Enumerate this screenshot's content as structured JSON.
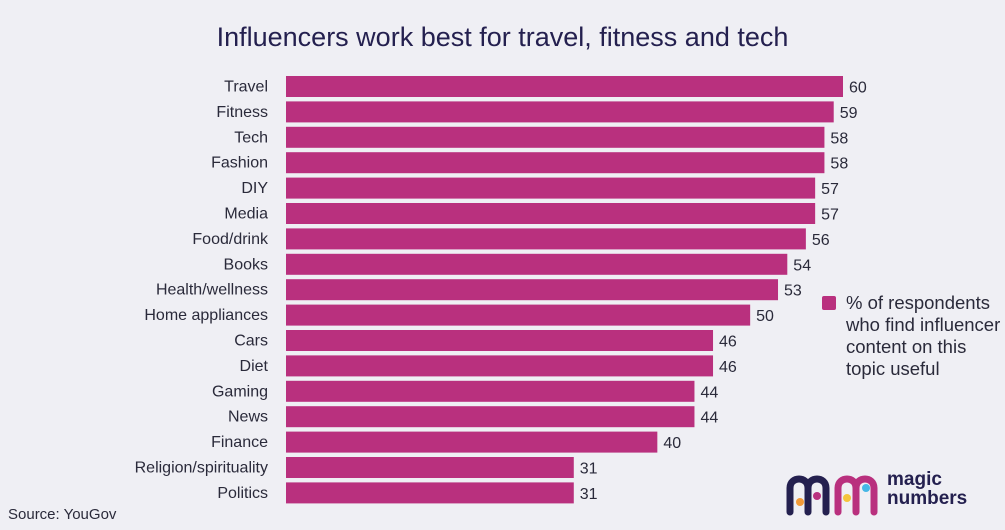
{
  "title": "Influencers work best for travel, fitness and tech",
  "source": "Source: YouGov",
  "legend": {
    "label": "% of respondents who find influencer content on this topic useful"
  },
  "logo": {
    "line1": "magic",
    "line2": "numbers"
  },
  "colors": {
    "bar": "#b9307e",
    "title": "#24204f",
    "background": "#efeff4"
  },
  "chart_data": {
    "type": "bar",
    "orientation": "horizontal",
    "categories": [
      "Travel",
      "Fitness",
      "Tech",
      "Fashion",
      "DIY",
      "Media",
      "Food/drink",
      "Books",
      "Health/wellness",
      "Home appliances",
      "Cars",
      "Diet",
      "Gaming",
      "News",
      "Finance",
      "Religion/spirituality",
      "Politics"
    ],
    "series": [
      {
        "name": "% of respondents who find influencer content on this topic useful",
        "values": [
          60,
          59,
          58,
          58,
          57,
          57,
          56,
          54,
          53,
          50,
          46,
          46,
          44,
          44,
          40,
          31,
          31
        ]
      }
    ],
    "xlim": [
      0,
      60
    ],
    "grid": false,
    "legend_position": "right"
  }
}
